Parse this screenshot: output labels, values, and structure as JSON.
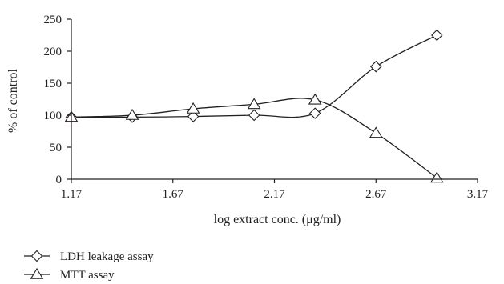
{
  "chart_data": {
    "type": "line",
    "title": "",
    "xlabel": "log extract conc. (μg/ml)",
    "ylabel": "% of control",
    "xlim": [
      1.17,
      3.17
    ],
    "ylim": [
      0,
      250
    ],
    "x_ticks": [
      "1.17",
      "1.67",
      "2.17",
      "2.67",
      "3.17"
    ],
    "y_ticks": [
      "0",
      "50",
      "100",
      "150",
      "200",
      "250"
    ],
    "grid": false,
    "legend_position": "bottom-left",
    "series": [
      {
        "name": "LDH leakage assay",
        "marker": "diamond",
        "color": "#231f20",
        "x": [
          1.17,
          1.47,
          1.77,
          2.07,
          2.37,
          2.67,
          2.97
        ],
        "y": [
          97,
          97,
          98,
          100,
          103,
          176,
          225
        ]
      },
      {
        "name": "MTT assay",
        "marker": "triangle",
        "color": "#231f20",
        "x": [
          1.17,
          1.47,
          1.77,
          2.07,
          2.37,
          2.67,
          2.97
        ],
        "y": [
          97,
          100,
          110,
          117,
          124,
          72,
          2
        ]
      }
    ]
  }
}
